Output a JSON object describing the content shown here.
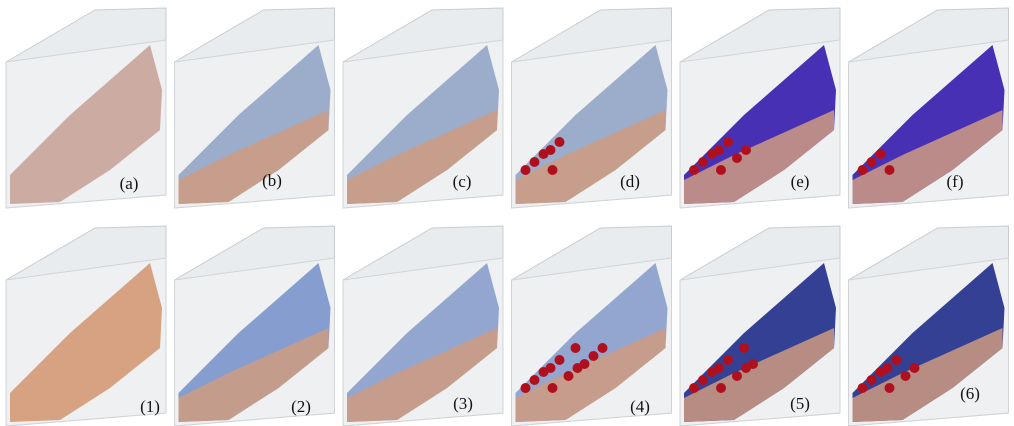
{
  "panels": {
    "top_row": [
      "(a)",
      "(b)",
      "(c)",
      "(d)",
      "(e)",
      "(f)"
    ],
    "bottom_row": [
      "(1)",
      "(2)",
      "(3)",
      "(4)",
      "(5)",
      "(6)"
    ]
  }
}
